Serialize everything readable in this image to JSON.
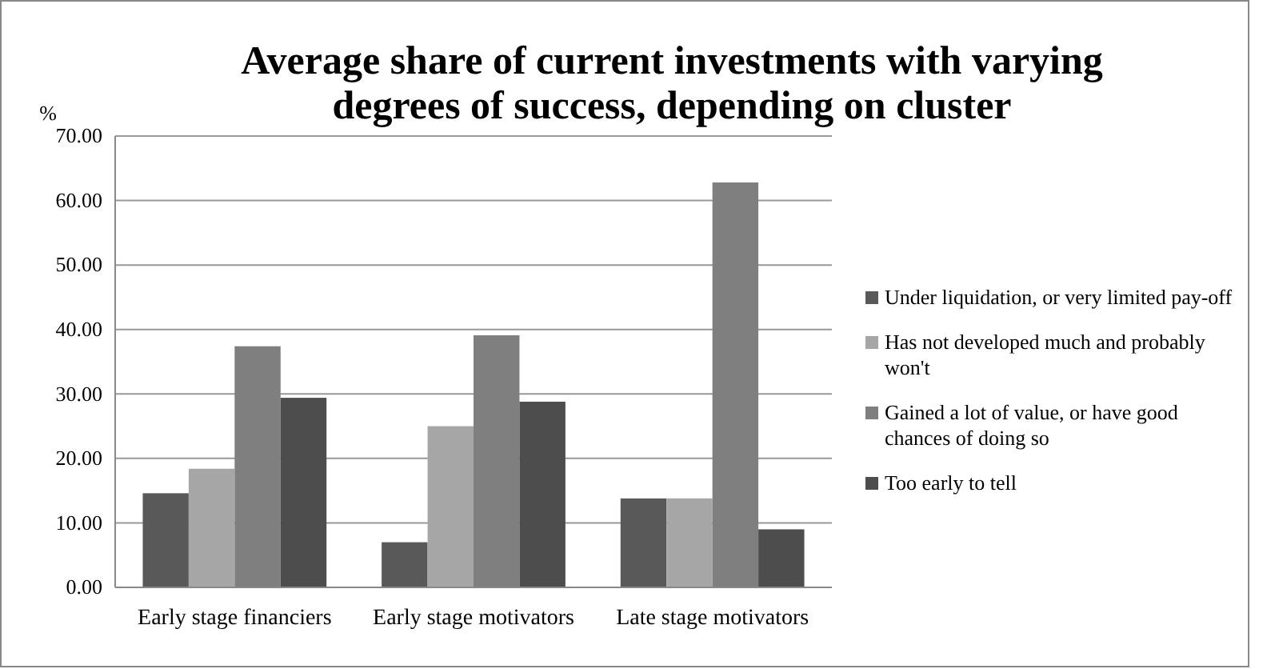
{
  "chart_data": {
    "type": "bar",
    "title": "Average share of current investments with varying degrees of success, depending on cluster",
    "ylabel": "%",
    "categories": [
      "Early stage financiers",
      "Early stage motivators",
      "Late stage motivators"
    ],
    "series": [
      {
        "name": "Under liquidation, or very limited pay-off",
        "color": "#595959",
        "values": [
          14.6,
          7.0,
          13.8
        ]
      },
      {
        "name": "Has not developed much and probably won't",
        "color": "#a6a6a6",
        "values": [
          18.4,
          25.0,
          13.8
        ]
      },
      {
        "name": "Gained a lot of value, or have good chances of doing so",
        "color": "#7f7f7f",
        "values": [
          37.4,
          39.1,
          62.8
        ]
      },
      {
        "name": "Too early to tell",
        "color": "#4d4d4d",
        "values": [
          29.4,
          28.8,
          9.0
        ]
      }
    ],
    "ylim": [
      0,
      70
    ],
    "yticks": [
      {
        "value": 0,
        "label": "0.00"
      },
      {
        "value": 10,
        "label": "10.00"
      },
      {
        "value": 20,
        "label": "20.00"
      },
      {
        "value": 30,
        "label": "30.00"
      },
      {
        "value": 40,
        "label": "40.00"
      },
      {
        "value": 50,
        "label": "50.00"
      },
      {
        "value": 60,
        "label": "60.00"
      },
      {
        "value": 70,
        "label": "70.00"
      }
    ],
    "grid": "y",
    "legend": "right"
  }
}
